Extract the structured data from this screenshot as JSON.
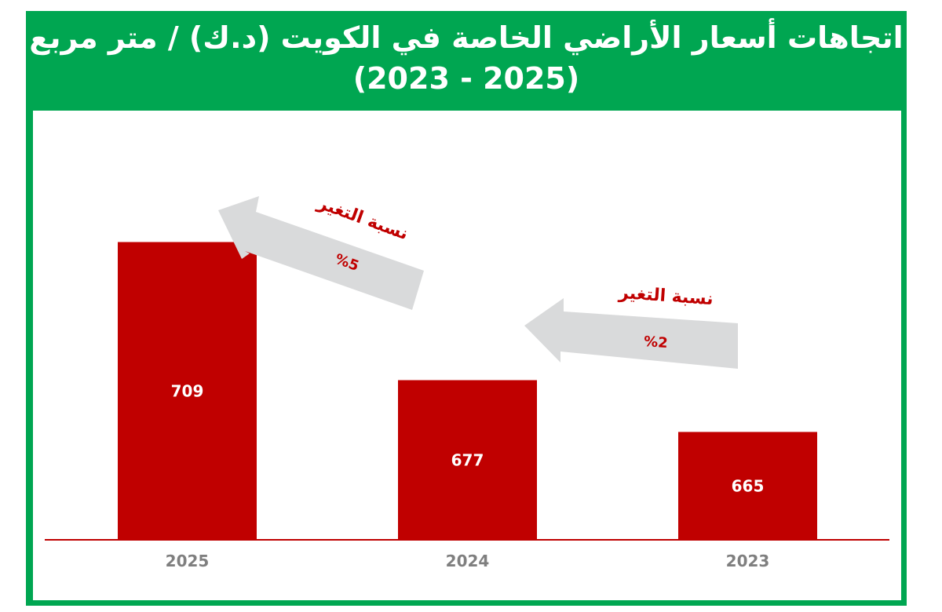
{
  "title_line1": "اتجاهات أسعار الأراضي الخاصة في الكويت (د.ك) / متر مربع",
  "title_line2": "(2023 - 2025)",
  "colors": {
    "header": "#00a651",
    "bar": "#c00000",
    "arrow": "#d9dadb",
    "arrow_text": "#c00000",
    "axis_label": "#7f7f7f"
  },
  "chart_data": {
    "type": "bar",
    "categories": [
      "2025",
      "2024",
      "2023"
    ],
    "values": [
      709,
      677,
      665
    ],
    "value_labels": [
      "709",
      "677",
      "665"
    ],
    "ylim": [
      640,
      750
    ],
    "xlabel": "",
    "ylabel": "",
    "grid": false,
    "annotations": [
      {
        "label": "نسبة التغير",
        "value": "%5",
        "from": "2024",
        "to": "2025"
      },
      {
        "label": "نسبة التغير",
        "value": "%2",
        "from": "2023",
        "to": "2024"
      }
    ]
  }
}
